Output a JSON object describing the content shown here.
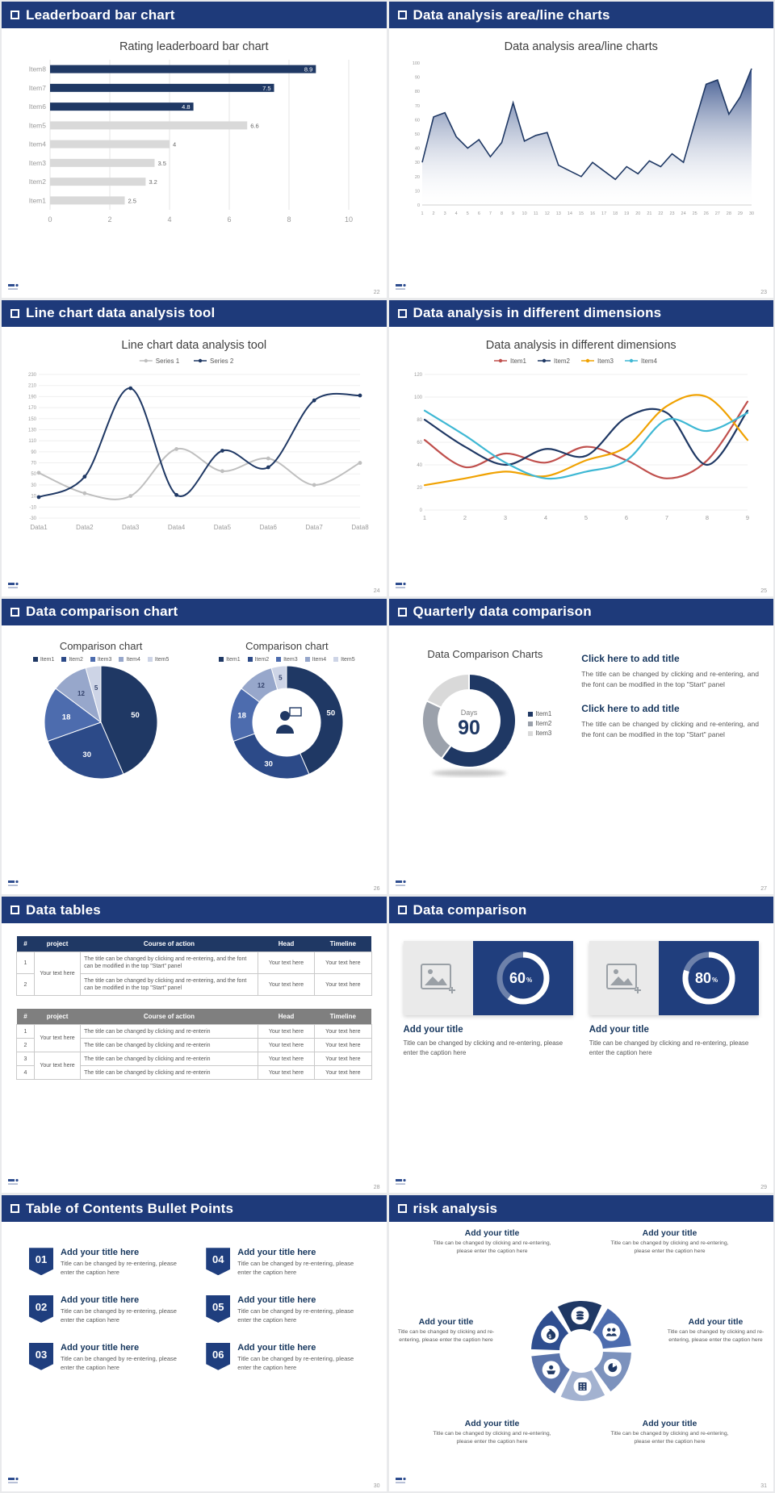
{
  "colors": {
    "header_bg": "#1e3a7a",
    "navy": "#1f3864",
    "gray_bar": "#d9d9d9",
    "text_dark": "#3f3f3f",
    "text_gray": "#595959",
    "page_bg": "#e9eaec"
  },
  "slides": [
    {
      "header": "Leaderboard bar chart",
      "page_number": "22",
      "chart_data": {
        "type": "bar",
        "orientation": "horizontal",
        "title": "Rating leaderboard bar chart",
        "categories": [
          "Item1",
          "Item2",
          "Item3",
          "Item4",
          "Item5",
          "Item6",
          "Item7",
          "Item8"
        ],
        "values": [
          2.5,
          3.2,
          3.5,
          4,
          6.6,
          4.8,
          7.5,
          8.9
        ],
        "bar_colors": [
          "#d9d9d9",
          "#d9d9d9",
          "#d9d9d9",
          "#d9d9d9",
          "#d9d9d9",
          "#1f3864",
          "#1f3864",
          "#1f3864"
        ],
        "xlim": [
          0,
          10
        ],
        "x_ticks": [
          0,
          2,
          4,
          6,
          8,
          10
        ]
      }
    },
    {
      "header": "Data analysis area/line charts",
      "page_number": "23",
      "chart_data": {
        "type": "area",
        "title": "Data analysis area/line charts",
        "x": [
          1,
          2,
          3,
          4,
          5,
          6,
          7,
          8,
          9,
          10,
          11,
          12,
          13,
          14,
          15,
          16,
          17,
          18,
          19,
          20,
          21,
          22,
          23,
          24,
          25,
          26,
          27,
          28,
          29,
          30
        ],
        "values": [
          30,
          62,
          65,
          48,
          40,
          46,
          34,
          44,
          72,
          45,
          49,
          51,
          28,
          24,
          20,
          30,
          24,
          18,
          27,
          22,
          31,
          27,
          36,
          30,
          58,
          85,
          88,
          64,
          76,
          96
        ],
        "ylim": [
          0,
          100
        ],
        "y_ticks": [
          0,
          10,
          20,
          30,
          40,
          50,
          60,
          70,
          80,
          90,
          100
        ],
        "line_color": "#1f3864"
      }
    },
    {
      "header": "Line chart data analysis tool",
      "page_number": "24",
      "chart_data": {
        "type": "line",
        "title": "Line chart data analysis tool",
        "categories": [
          "Data1",
          "Data2",
          "Data3",
          "Data4",
          "Data5",
          "Data6",
          "Data7",
          "Data8"
        ],
        "ylim": [
          -30,
          230
        ],
        "y_ticks": [
          -30,
          -10,
          10,
          30,
          50,
          70,
          90,
          110,
          130,
          150,
          170,
          190,
          210,
          230
        ],
        "series": [
          {
            "name": "Series 1",
            "color": "#bfbfbf",
            "values": [
              52,
              15,
              10,
              95,
              55,
              78,
              30,
              70
            ]
          },
          {
            "name": "Series 2",
            "color": "#1f3864",
            "values": [
              8,
              45,
              205,
              12,
              92,
              62,
              183,
              192
            ]
          }
        ]
      }
    },
    {
      "header": "Data analysis in different dimensions",
      "page_number": "25",
      "chart_data": {
        "type": "line",
        "title": "Data analysis in different dimensions",
        "x": [
          1,
          2,
          3,
          4,
          5,
          6,
          7,
          8,
          9
        ],
        "ylim": [
          0,
          120
        ],
        "y_ticks": [
          0,
          20,
          40,
          60,
          80,
          100,
          120
        ],
        "series": [
          {
            "name": "Item1",
            "color": "#c0504d",
            "values": [
              62,
              38,
              50,
              42,
              56,
              44,
              28,
              44,
              96
            ]
          },
          {
            "name": "Item2",
            "color": "#1f3864",
            "values": [
              80,
              56,
              40,
              54,
              48,
              82,
              86,
              40,
              88
            ]
          },
          {
            "name": "Item3",
            "color": "#f0a202",
            "values": [
              22,
              28,
              34,
              30,
              44,
              56,
              92,
              100,
              62
            ]
          },
          {
            "name": "Item4",
            "color": "#3fb8d4",
            "values": [
              88,
              66,
              42,
              28,
              34,
              44,
              80,
              70,
              86
            ]
          }
        ]
      }
    },
    {
      "header": "Data comparison chart",
      "page_number": "26",
      "chart_data": [
        {
          "type": "pie",
          "title": "Comparison chart",
          "legend": [
            "Item1",
            "Item2",
            "Item3",
            "Item4",
            "Item5"
          ],
          "values": [
            50,
            30,
            18,
            12,
            5
          ],
          "colors": [
            "#1f3864",
            "#2c4a88",
            "#4d6cae",
            "#97a7cb",
            "#cdd4e6"
          ]
        },
        {
          "type": "donut",
          "title": "Comparison chart",
          "legend": [
            "Item1",
            "Item2",
            "Item3",
            "Item4",
            "Item5"
          ],
          "values": [
            50,
            30,
            18,
            12,
            5
          ],
          "colors": [
            "#1f3864",
            "#2c4a88",
            "#4d6cae",
            "#97a7cb",
            "#cdd4e6"
          ],
          "center_icon": "presenter-icon"
        }
      ]
    },
    {
      "header": "Quarterly data comparison",
      "page_number": "27",
      "chart_data": {
        "type": "donut",
        "title": "Data Comparison Charts",
        "center_label": "Days",
        "center_value": "90",
        "legend": [
          "Item1",
          "Item2",
          "Item3"
        ],
        "values": [
          60,
          22,
          18
        ],
        "colors": [
          "#1f3864",
          "#9ba1ab",
          "#d9d9d9"
        ]
      },
      "blocks": [
        {
          "title": "Click here to add title",
          "body": "The title can be changed by clicking and re-entering, and the font can be modified in the top \"Start\" panel"
        },
        {
          "title": "Click here to add title",
          "body": "The title can be changed by clicking and re-entering, and the font can be modified in the top \"Start\" panel"
        }
      ]
    },
    {
      "header": "Data tables",
      "page_number": "28",
      "table1": {
        "columns": [
          "#",
          "project",
          "Course of action",
          "Head",
          "Timeline"
        ],
        "project": "Your text here",
        "rows": [
          {
            "num": "1",
            "action": "The title can be changed by clicking and re-entering, and the font can be modified in the top \"Start\" panel",
            "head": "Your text here",
            "timeline": "Your text here"
          },
          {
            "num": "2",
            "action": "The title can be changed by clicking and re-entering, and the font can be modified in the top \"Start\" panel",
            "head": "Your text here",
            "timeline": "Your text here"
          }
        ]
      },
      "table2": {
        "columns": [
          "#",
          "project",
          "Course of action",
          "Head",
          "Timeline"
        ],
        "projects": [
          "Your text here",
          "Your text here"
        ],
        "rows": [
          {
            "num": "1",
            "action": "The title can be changed by clicking and re-enterin",
            "head": "Your text here",
            "timeline": "Your text here"
          },
          {
            "num": "2",
            "action": "The title can be changed by clicking and re-enterin",
            "head": "Your text here",
            "timeline": "Your text here"
          },
          {
            "num": "3",
            "action": "The title can be changed by clicking and re-enterin",
            "head": "Your text here",
            "timeline": "Your text here"
          },
          {
            "num": "4",
            "action": "The title can be changed by clicking and re-enterin",
            "head": "Your text here",
            "timeline": "Your text here"
          }
        ]
      }
    },
    {
      "header": "Data comparison",
      "page_number": "29",
      "cards": [
        {
          "percent": 60,
          "title": "Add your title",
          "caption": "Title can be changed by clicking and re-entering, please enter the caption here"
        },
        {
          "percent": 80,
          "title": "Add your title",
          "caption": "Title can be changed by clicking and re-entering, please enter the caption here"
        }
      ]
    },
    {
      "header": "Table of Contents Bullet Points",
      "page_number": "30",
      "items": [
        {
          "num": "01",
          "title": "Add your title here",
          "caption": "Title can be changed by re-entering, please enter the caption here"
        },
        {
          "num": "02",
          "title": "Add your title here",
          "caption": "Title can be changed by re-entering, please enter the caption here"
        },
        {
          "num": "03",
          "title": "Add your title here",
          "caption": "Title can be changed by re-entering, please enter the caption here"
        },
        {
          "num": "04",
          "title": "Add your title here",
          "caption": "Title can be changed by re-entering, please enter the caption here"
        },
        {
          "num": "05",
          "title": "Add your title here",
          "caption": "Title can be changed by re-entering, please enter the caption here"
        },
        {
          "num": "06",
          "title": "Add your title here",
          "caption": "Title can be changed by re-entering, please enter the caption here"
        }
      ]
    },
    {
      "header": "risk analysis",
      "page_number": "31",
      "wheel_icons": [
        "money-bag",
        "coins",
        "people",
        "pie-chart",
        "building",
        "hand"
      ],
      "items": [
        {
          "title": "Add your title",
          "caption": "Title can be changed by clicking and re-entering, please enter the caption here"
        },
        {
          "title": "Add your title",
          "caption": "Title can be changed by clicking and re-entering, please enter the caption here"
        },
        {
          "title": "Add your title",
          "caption": "Title can be changed by clicking and re-entering, please enter the caption here"
        },
        {
          "title": "Add your title",
          "caption": "Title can be changed by clicking and re-entering, please enter the caption here"
        },
        {
          "title": "Add your title",
          "caption": "Title can be changed by clicking and re-entering, please enter the caption here"
        },
        {
          "title": "Add your title",
          "caption": "Title can be changed by clicking and re-entering, please enter the caption here"
        }
      ]
    }
  ]
}
